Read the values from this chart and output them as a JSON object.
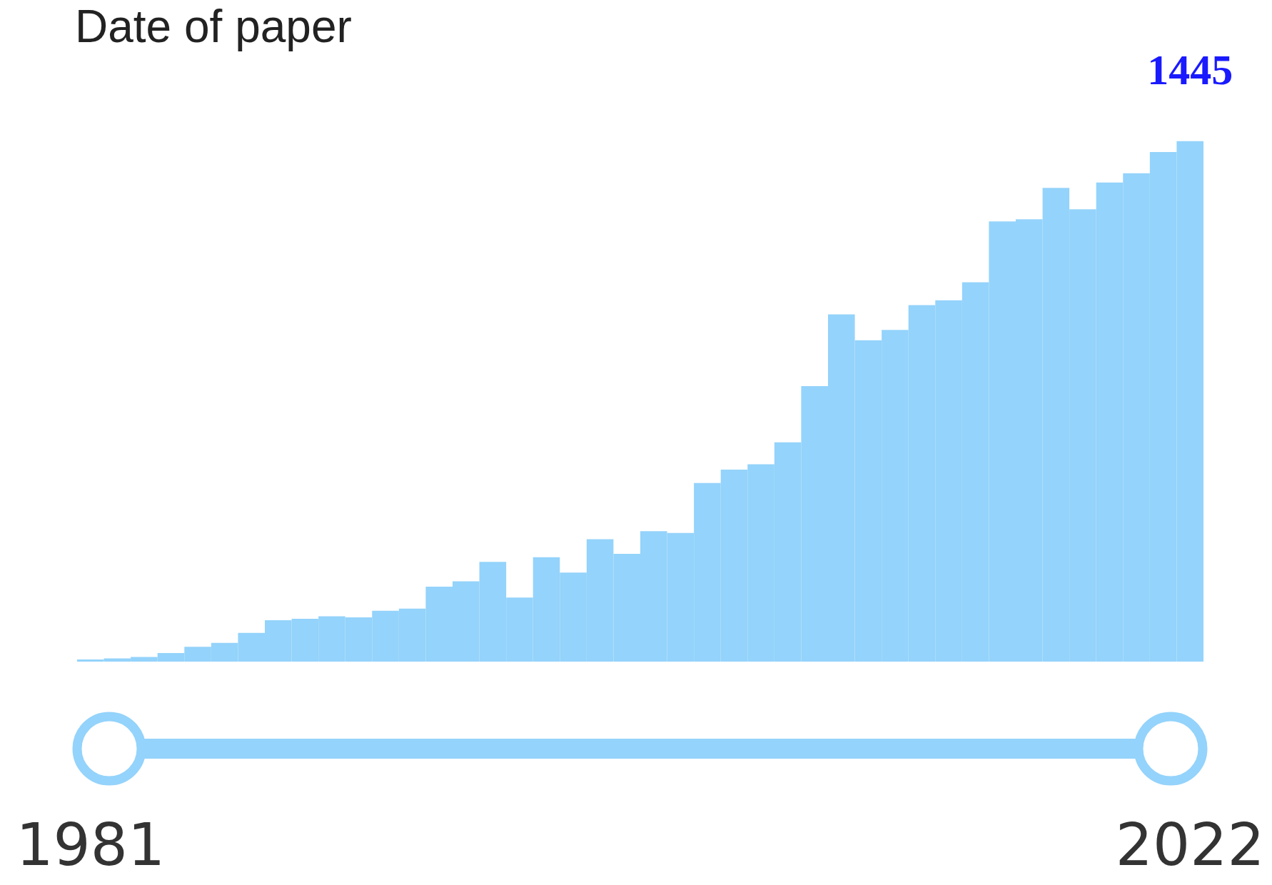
{
  "chart_data": {
    "type": "bar",
    "title": "Date of paper",
    "categories": [
      "1981",
      null,
      null,
      null,
      null,
      null,
      null,
      null,
      null,
      null,
      null,
      null,
      null,
      null,
      null,
      null,
      null,
      null,
      null,
      null,
      null,
      null,
      null,
      null,
      null,
      null,
      null,
      null,
      null,
      null,
      null,
      null,
      null,
      null,
      null,
      null,
      null,
      null,
      null,
      null,
      null,
      "2022"
    ],
    "values": [
      6,
      9,
      13,
      24,
      41,
      52,
      80,
      115,
      119,
      126,
      123,
      141,
      147,
      208,
      223,
      277,
      178,
      290,
      247,
      340,
      299,
      362,
      357,
      496,
      533,
      548,
      609,
      765,
      964,
      892,
      921,
      990,
      1003,
      1053,
      1222,
      1228,
      1315,
      1256,
      1330,
      1356,
      1415,
      1445
    ],
    "value_labels": [
      null,
      null,
      null,
      null,
      null,
      null,
      null,
      null,
      null,
      null,
      null,
      null,
      null,
      null,
      null,
      null,
      null,
      null,
      null,
      null,
      null,
      null,
      null,
      null,
      null,
      null,
      null,
      null,
      null,
      null,
      null,
      null,
      null,
      null,
      null,
      null,
      null,
      null,
      null,
      null,
      null,
      "1445"
    ],
    "color": "#94d3fb"
  }
}
